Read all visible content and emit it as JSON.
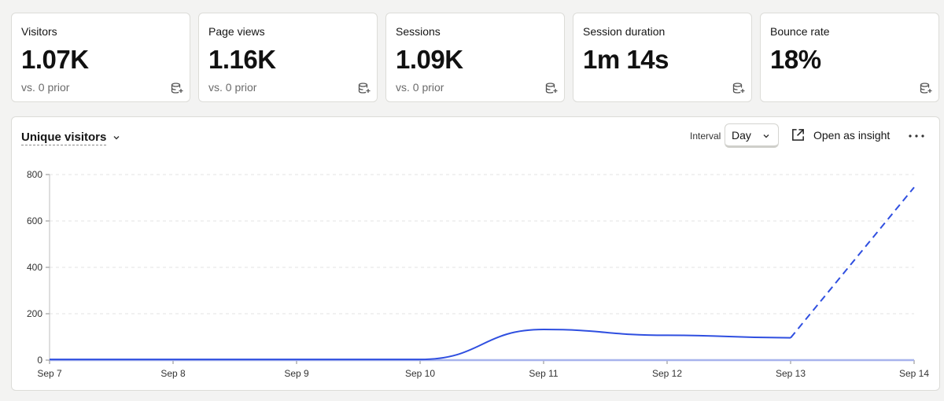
{
  "cards": [
    {
      "title": "Visitors",
      "value": "1.07K",
      "prior": "vs. 0 prior"
    },
    {
      "title": "Page views",
      "value": "1.16K",
      "prior": "vs. 0 prior"
    },
    {
      "title": "Sessions",
      "value": "1.09K",
      "prior": "vs. 0 prior"
    },
    {
      "title": "Session duration",
      "value": "1m 14s",
      "prior": ""
    },
    {
      "title": "Bounce rate",
      "value": "18%",
      "prior": ""
    }
  ],
  "panel": {
    "metric": "Unique visitors",
    "interval_label": "Interval",
    "interval_value": "Day",
    "open_insight": "Open as insight"
  },
  "icons": {
    "card_action": "database-add-icon",
    "metric_dropdown": "chevron-down-icon",
    "interval_dropdown": "chevron-down-icon",
    "open_insight": "external-link-icon",
    "more": "more-horizontal-icon"
  },
  "colors": {
    "series": "#2f4fe0",
    "comparison": "#a7b3ec"
  },
  "chart_data": {
    "type": "line",
    "x": [
      "Sep 7",
      "Sep 8",
      "Sep 9",
      "Sep 10",
      "Sep 11",
      "Sep 12",
      "Sep 13",
      "Sep 14"
    ],
    "series": [
      {
        "values": [
          3,
          3,
          3,
          3,
          132,
          107,
          96,
          745
        ],
        "style": "solid, last segment dashed (in-progress period)"
      },
      {
        "values": [
          0,
          0,
          0,
          0,
          0,
          0,
          0,
          0
        ],
        "style": "light solid baseline (previous period)"
      }
    ],
    "ylim": [
      0,
      800
    ],
    "yticks": [
      0,
      200,
      400,
      600,
      800
    ],
    "xlabel": "",
    "ylabel": "",
    "grid": "horizontal dashed"
  }
}
